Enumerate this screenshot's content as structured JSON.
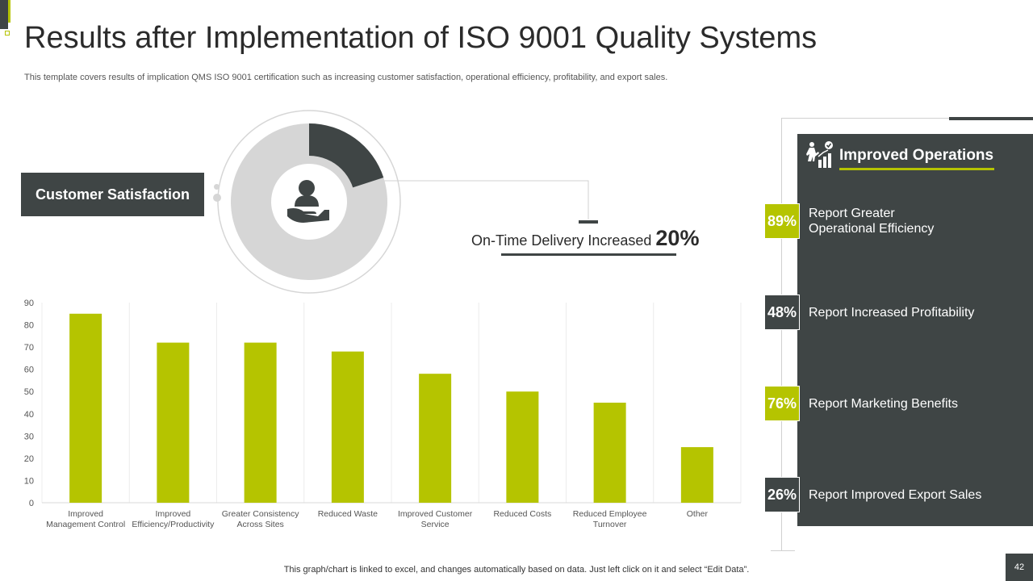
{
  "header": {
    "title": "Results after Implementation of ISO 9001 Quality Systems",
    "subtitle": "This template covers results of implication QMS ISO 9001 certification such as increasing customer satisfaction, operational efficiency, profitability, and export sales."
  },
  "customer_satisfaction": {
    "label": "Customer Satisfaction",
    "donut_value": 20
  },
  "on_time_delivery": {
    "text": "On-Time Delivery Increased ",
    "value": "20%"
  },
  "operations": {
    "title": "Improved Operations",
    "items": [
      {
        "value": "89%",
        "line1": "Report Greater",
        "line2": "Operational Efficiency",
        "style": "green"
      },
      {
        "value": "48%",
        "line1": "Report Increased Profitability",
        "line2": "",
        "style": "dark"
      },
      {
        "value": "76%",
        "line1": "Report Marketing Benefits",
        "line2": "",
        "style": "green"
      },
      {
        "value": "26%",
        "line1": "Report Improved Export Sales",
        "line2": "",
        "style": "dark"
      }
    ]
  },
  "footer": {
    "note": "This graph/chart is linked to excel, and changes automatically based on data. Just left click on it and select “Edit Data”.",
    "page_number": "42"
  },
  "colors": {
    "accent": "#b5c400",
    "dark": "#3f4545",
    "light_gray": "#d6d6d6"
  },
  "chart_data": {
    "type": "bar",
    "categories": [
      [
        "Improved",
        "Management Control"
      ],
      [
        "Improved",
        "Efficiency/Productivity"
      ],
      [
        "Greater Consistency",
        "Across Sites"
      ],
      [
        "Reduced Waste"
      ],
      [
        "Improved Customer",
        "Service"
      ],
      [
        "Reduced Costs"
      ],
      [
        "Reduced Employee",
        "Turnover"
      ],
      [
        "Other"
      ]
    ],
    "values": [
      85,
      72,
      72,
      68,
      58,
      50,
      45,
      25
    ],
    "ylim": [
      0,
      90
    ],
    "yticks": [
      0,
      10,
      20,
      30,
      40,
      50,
      60,
      70,
      80,
      90
    ],
    "title": "",
    "xlabel": "",
    "ylabel": "",
    "grid": "vertical separators",
    "bar_color": "#b5c400"
  }
}
